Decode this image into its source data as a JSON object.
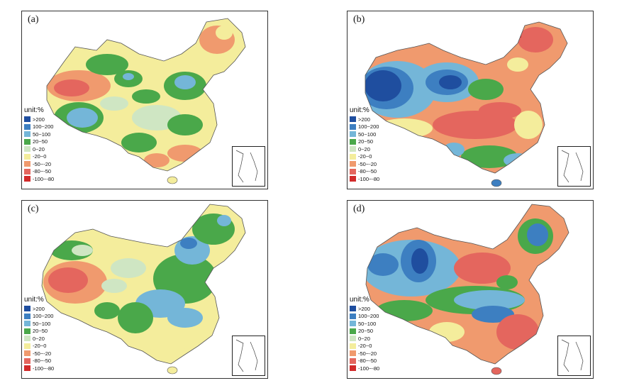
{
  "panels": [
    {
      "id": "a",
      "label": "(a)"
    },
    {
      "id": "b",
      "label": "(b)"
    },
    {
      "id": "c",
      "label": "(c)"
    },
    {
      "id": "d",
      "label": "(d)"
    }
  ],
  "legend": {
    "unit": "unit:%",
    "items": [
      {
        "label": ">200",
        "color": "#1f4e9f"
      },
      {
        "label": "100~200",
        "color": "#3d7fc1"
      },
      {
        "label": "50~100",
        "color": "#74b6d8"
      },
      {
        "label": "20~50",
        "color": "#4aa84a"
      },
      {
        "label": "0~20",
        "color": "#cfe6c3"
      },
      {
        "label": "-20~0",
        "color": "#f4ed9c"
      },
      {
        "label": "-50~-20",
        "color": "#f09a6e"
      },
      {
        "label": "-80~-50",
        "color": "#e4665e"
      },
      {
        "label": "-100~-80",
        "color": "#d12a2a"
      }
    ]
  },
  "legend_display": {
    "a": [
      "unit:%",
      ">200",
      "100~200",
      "50~100",
      "20~50",
      "0~20",
      "-20~0",
      "-50~-20",
      "-80~-50",
      "-100~-80"
    ],
    "b": [
      "unit:%",
      ">200",
      "100~200",
      "50~100",
      "20~50",
      "0~20",
      "-20~0",
      "-50~-20",
      "-80~-50",
      "-100~-80"
    ],
    "c": [
      "unit:%",
      ">200",
      "100~200",
      "50~100",
      "20~50",
      "0~20",
      "-20~0",
      "-50~-20",
      "-80~-50",
      "-100~-80"
    ],
    "d": [
      "unit:%",
      ">200",
      "100~200",
      "50~100",
      "20~50",
      "0~20",
      "-20~0",
      "-50~-20",
      "-80~-50",
      "-100~-80"
    ]
  }
}
